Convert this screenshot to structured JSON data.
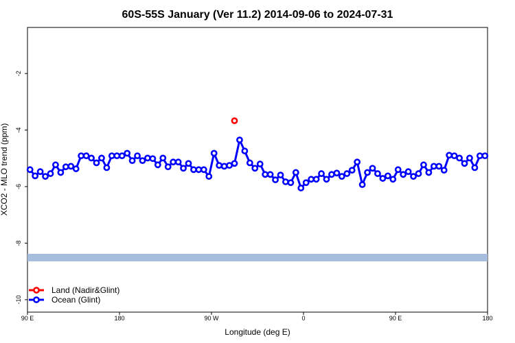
{
  "chart_data": {
    "type": "line",
    "title": "60S-55S January (Ver 11.2)   2014-09-06 to 2024-07-31",
    "x_label": "Longitude (deg E)",
    "y_label": "XCO2 - MLO trend (ppm)",
    "xlim": [
      90,
      540
    ],
    "ylim": [
      -10.44,
      -0.37
    ],
    "xticks": [
      {
        "value": 90,
        "label": "90 E"
      },
      {
        "value": 180,
        "label": "180"
      },
      {
        "value": 270,
        "label": "90 W"
      },
      {
        "value": 360,
        "label": "0"
      },
      {
        "value": 450,
        "label": "90 E"
      },
      {
        "value": 540,
        "label": "180"
      }
    ],
    "yticks": [
      -10,
      -8,
      -6,
      -4,
      -2
    ],
    "legend": "bottom-left",
    "series": [
      {
        "name": "Land (Nadir&Glint)",
        "color": "#ff0000",
        "x": [
          292.5
        ],
        "values": [
          -3.67
        ]
      },
      {
        "name": "Ocean (Glint)",
        "color": "#0000ff",
        "x": [
          92.5,
          97.5,
          102.5,
          107.5,
          112.5,
          117.5,
          122.5,
          127.5,
          132.5,
          137.5,
          142.5,
          147.5,
          152.5,
          157.5,
          162.5,
          167.5,
          172.5,
          177.5,
          182.5,
          187.5,
          192.5,
          197.5,
          202.5,
          207.5,
          212.5,
          217.5,
          222.5,
          227.5,
          232.5,
          237.5,
          242.5,
          247.5,
          252.5,
          257.5,
          262.5,
          267.5,
          272.5,
          277.5,
          282.5,
          287.5,
          292.5,
          297.5,
          302.5,
          307.5,
          312.5,
          317.5,
          322.5,
          327.5,
          332.5,
          337.5,
          342.5,
          347.5,
          352.5,
          357.5,
          362.5,
          367.5,
          372.5,
          377.5,
          382.5,
          387.5,
          392.5,
          397.5,
          402.5,
          407.5,
          412.5,
          417.5,
          422.5,
          427.5,
          432.5,
          437.5,
          442.5,
          447.5,
          452.5,
          457.5,
          462.5,
          467.5,
          472.5,
          477.5,
          482.5,
          487.5,
          492.5,
          497.5,
          502.5,
          507.5,
          512.5,
          517.5,
          522.5,
          527.5,
          532.5,
          537.5
        ],
        "values": [
          -5.4,
          -5.62,
          -5.47,
          -5.64,
          -5.54,
          -5.23,
          -5.5,
          -5.3,
          -5.28,
          -5.37,
          -4.91,
          -4.91,
          -4.99,
          -5.16,
          -4.99,
          -5.33,
          -4.91,
          -4.91,
          -4.91,
          -4.82,
          -5.08,
          -4.91,
          -5.08,
          -4.99,
          -5.01,
          -5.23,
          -4.99,
          -5.3,
          -5.13,
          -5.13,
          -5.35,
          -5.18,
          -5.4,
          -5.4,
          -5.4,
          -5.64,
          -4.82,
          -5.25,
          -5.28,
          -5.25,
          -5.18,
          -4.35,
          -4.74,
          -5.16,
          -5.35,
          -5.2,
          -5.57,
          -5.57,
          -5.76,
          -5.59,
          -5.83,
          -5.86,
          -5.5,
          -6.05,
          -5.86,
          -5.74,
          -5.74,
          -5.54,
          -5.74,
          -5.57,
          -5.52,
          -5.64,
          -5.54,
          -5.42,
          -5.13,
          -5.93,
          -5.5,
          -5.35,
          -5.54,
          -5.71,
          -5.62,
          -5.74,
          -5.4,
          -5.57,
          -5.47,
          -5.64,
          -5.54,
          -5.23,
          -5.5,
          -5.28,
          -5.28,
          -5.42,
          -4.89,
          -4.91,
          -4.99,
          -5.18,
          -4.99,
          -5.33,
          -4.91,
          -4.91
        ]
      }
    ]
  }
}
